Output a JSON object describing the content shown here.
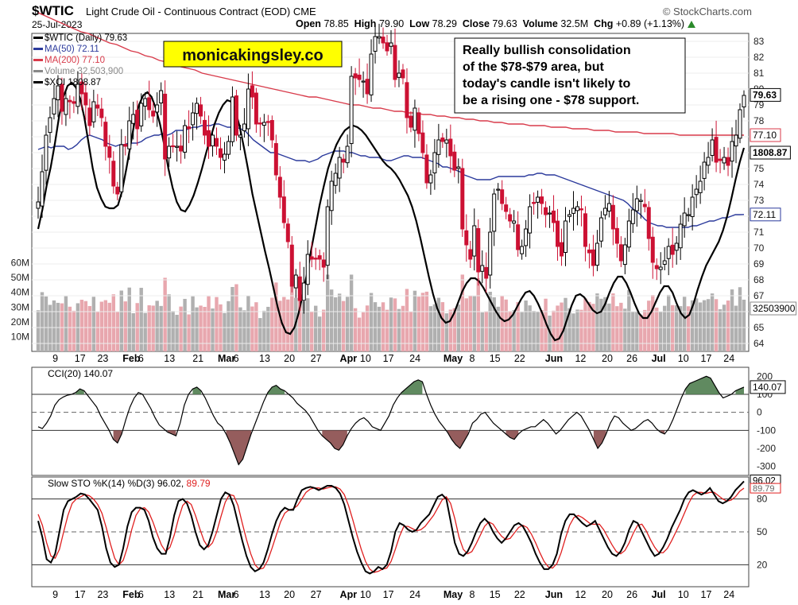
{
  "header": {
    "symbol": "$WTIC",
    "description": "Light Crude Oil - Continuous Contract (EOD) CME",
    "source": "© StockCharts.com",
    "date": "25-Jul-2023",
    "open_label": "Open",
    "open": "78.85",
    "high_label": "High",
    "high": "79.90",
    "low_label": "Low",
    "low": "78.29",
    "close_label": "Close",
    "close": "79.63",
    "volume_label": "Volume",
    "volume": "32.5M",
    "chg_label": "Chg",
    "chg": "+0.89 (+1.13%)"
  },
  "watermark": "monicakingsley.co",
  "annotation": "Really bullish consolidation of the $78-$79 area, but today's candle isn't likely to be a rising one - $78 support.",
  "colors": {
    "up": "#000000",
    "down": "#cc1133",
    "ma50": "#2b3a9c",
    "ma200": "#d83a4a",
    "xoi": "#000000",
    "vol_up": "#b0b0b0",
    "vol_down": "#e8a7ae",
    "cci_fill_pos": "#4f7d4f",
    "cci_fill_neg": "#8a4b4b",
    "stoch_k": "#000000",
    "stoch_d": "#e02020"
  },
  "chart_data": [
    {
      "type": "candlestick",
      "panel": "price",
      "title": "$WTIC (Daily) 79.63",
      "legend": [
        "$WTIC (Daily) 79.63",
        "MA(50) 72.11",
        "MA(200) 77.10",
        "Volume 32,503,900",
        "$XOI 1808.87"
      ],
      "ylim": [
        63.5,
        83.5
      ],
      "y_ticks": [
        64,
        65,
        66,
        67,
        68,
        69,
        70,
        71,
        72,
        73,
        74,
        75,
        76,
        77,
        78,
        79,
        80,
        81,
        82,
        83
      ],
      "volume_ticks": [
        "10M",
        "20M",
        "30M",
        "40M",
        "50M",
        "60M"
      ],
      "volume_ylim": [
        0,
        70
      ],
      "x_labels": [
        "9",
        "17",
        "23",
        "Feb",
        "6",
        "13",
        "21",
        "Mar",
        "6",
        "13",
        "20",
        "27",
        "Apr",
        "10",
        "17",
        "24",
        "May",
        "8",
        "15",
        "22",
        "Jun",
        "12",
        "20",
        "26",
        "Jul",
        "10",
        "17",
        "24"
      ],
      "value_labels": {
        "close": "79.63",
        "ma200": "77.10",
        "xoi": "1808.87",
        "ma50": "72.11",
        "volume": "32503900"
      },
      "closes": [
        72.9,
        74.8,
        77.1,
        78.2,
        79.4,
        80.2,
        78.6,
        79.4,
        79.2,
        79.1,
        80.3,
        79.7,
        79.0,
        77.7,
        79.2,
        78.8,
        78.2,
        76.4,
        75.7,
        73.9,
        73.4,
        76.5,
        76.4,
        78.0,
        78.4,
        77.5,
        79.1,
        79.4,
        78.7,
        78.3,
        79.0,
        79.9,
        75.6,
        76.4,
        76.4,
        76.4,
        76.1,
        77.7,
        77.5,
        78.5,
        79.1,
        78.3,
        77.1,
        76.4,
        77.1,
        76.4,
        75.7,
        75.9,
        76.7,
        79.5,
        77.1,
        77.1,
        77.8,
        80.0,
        79.5,
        77.8,
        77.8,
        77.9,
        77.9,
        76.8,
        74.6,
        73.2,
        71.6,
        70.4,
        67.6,
        68.3,
        66.7,
        67.8,
        69.6,
        69.3,
        69.3,
        69.3,
        68.8,
        72.6,
        74.2,
        74.7,
        75.7,
        75.4,
        76.4,
        80.8,
        80.7,
        80.6,
        80.5,
        79.7,
        82.2,
        83.3,
        83.3,
        82.9,
        82.4,
        82.9,
        80.6,
        81.0,
        80.7,
        78.2,
        77.6,
        78.8,
        77.2,
        76.0,
        74.1,
        74.6,
        76.0,
        76.8,
        76.7,
        76.8,
        75.8,
        74.9,
        75.1,
        71.2,
        70.2,
        69.3,
        71.4,
        68.5,
        68.9,
        68.1,
        71.0,
        73.4,
        73.7,
        72.8,
        72.3,
        71.7,
        71.7,
        69.9,
        70.1,
        71.2,
        72.6,
        72.8,
        73.2,
        72.8,
        72.1,
        72.2,
        71.6,
        70.1,
        69.5,
        71.7,
        72.1,
        72.5,
        72.6,
        72.4,
        70.1,
        69.7,
        68.9,
        70.3,
        71.9,
        72.5,
        72.8,
        71.2,
        70.3,
        69.2,
        70.2,
        71.7,
        72.4,
        73.1,
        73.0,
        72.6,
        70.6,
        69.1,
        68.7,
        68.8,
        69.2,
        70.1,
        69.6,
        70.3,
        71.5,
        72.2,
        72.1,
        73.2,
        73.7,
        74.2,
        75.4,
        75.7,
        76.8,
        75.4,
        75.5,
        75.7,
        75.2,
        76.7,
        77.1,
        78.7,
        79.6
      ],
      "ma50": [
        76.2,
        76.3,
        76.4,
        76.3,
        76.4,
        76.4,
        76.4,
        76.2,
        76.3,
        76.5,
        76.8,
        77.0,
        77.1,
        77.0,
        76.9,
        76.8,
        76.6,
        76.5,
        76.4,
        76.5,
        76.5,
        76.6,
        76.6,
        76.6,
        76.7,
        76.9,
        77.0,
        77.1,
        77.1,
        77.2,
        77.1,
        77.2,
        77.4,
        77.4,
        77.4,
        77.5,
        77.6,
        77.6,
        77.7,
        77.7,
        77.7,
        77.8,
        77.8,
        77.7,
        77.6,
        77.6,
        77.6,
        77.5,
        77.4,
        77.1,
        76.8,
        76.6,
        76.4,
        76.2,
        76.0,
        76.0,
        75.9,
        75.8,
        75.7,
        75.6,
        75.5,
        75.5,
        75.5,
        75.4,
        75.5,
        75.6,
        75.8,
        75.9,
        76.0,
        76.1,
        76.1,
        76.1,
        76.0,
        76.0,
        75.9,
        75.8,
        75.8,
        75.7,
        75.7,
        75.7,
        75.6,
        75.5,
        75.5,
        75.6,
        75.7,
        75.8,
        75.8,
        75.7,
        75.7,
        75.7,
        75.6,
        75.5,
        75.4,
        75.3,
        75.1,
        75.1,
        75.0,
        74.9,
        74.8,
        74.6,
        74.5,
        74.4,
        74.3,
        74.3,
        74.3,
        74.3,
        74.4,
        74.5,
        74.5,
        74.5,
        74.5,
        74.5,
        74.5,
        74.5,
        74.6,
        74.6,
        74.7,
        74.7,
        74.6,
        74.6,
        74.6,
        74.5,
        74.4,
        74.3,
        74.2,
        74.1,
        74.0,
        73.9,
        73.8,
        73.7,
        73.6,
        73.5,
        73.4,
        73.3,
        73.2,
        73.1,
        73.0,
        72.8,
        72.5,
        72.3,
        72.1,
        71.8,
        71.6,
        71.5,
        71.4,
        71.4,
        71.3,
        71.3,
        71.3,
        71.3,
        71.3,
        71.3,
        71.4,
        71.4,
        71.5,
        71.6,
        71.7,
        71.7,
        71.8,
        71.9,
        71.9,
        72.0,
        72.1,
        72.1,
        72.11
      ],
      "ma200": [
        84.8,
        84.6,
        84.4,
        84.2,
        84.0,
        83.8,
        83.6,
        83.5,
        83.3,
        83.1,
        82.9,
        82.8,
        82.6,
        82.4,
        82.3,
        82.1,
        82.0,
        81.8,
        81.7,
        81.6,
        81.4,
        81.3,
        81.2,
        81.0,
        80.9,
        80.8,
        80.7,
        80.6,
        80.5,
        80.4,
        80.3,
        80.2,
        80.1,
        80.0,
        79.9,
        79.8,
        79.7,
        79.6,
        79.5,
        79.5,
        79.4,
        79.3,
        79.2,
        79.1,
        79.0,
        79.0,
        78.9,
        78.8,
        78.8,
        78.7,
        78.6,
        78.6,
        78.5,
        78.5,
        78.4,
        78.4,
        78.3,
        78.3,
        78.2,
        78.2,
        78.1,
        78.1,
        78.0,
        78.0,
        77.9,
        77.9,
        77.8,
        77.8,
        77.8,
        77.7,
        77.7,
        77.7,
        77.6,
        77.6,
        77.6,
        77.5,
        77.5,
        77.5,
        77.4,
        77.4,
        77.4,
        77.3,
        77.3,
        77.3,
        77.3,
        77.2,
        77.2,
        77.2,
        77.2,
        77.2,
        77.1,
        77.1,
        77.1,
        77.1,
        77.1,
        77.1,
        77.1,
        77.1,
        77.1,
        77.1
      ],
      "xoi": [
        71.2,
        72.4,
        73.9,
        75.1,
        76.6,
        78.3,
        79.5,
        80.2,
        80.4,
        80.1,
        79.4,
        78.2,
        76.6,
        75.0,
        73.8,
        73.1,
        72.6,
        72.5,
        72.5,
        72.7,
        73.6,
        75.0,
        76.5,
        78.0,
        79.0,
        79.6,
        79.8,
        79.5,
        78.8,
        77.8,
        76.5,
        75.0,
        73.8,
        72.9,
        72.4,
        72.3,
        72.7,
        73.3,
        74.1,
        75.0,
        76.0,
        76.9,
        77.8,
        78.5,
        79.0,
        79.3,
        79.2,
        78.6,
        77.6,
        76.3,
        74.9,
        73.4,
        72.2,
        71.0,
        69.8,
        68.7,
        67.5,
        66.3,
        65.3,
        64.7,
        64.6,
        65.0,
        65.9,
        67.1,
        68.4,
        69.9,
        71.3,
        72.7,
        73.9,
        75.0,
        75.8,
        76.5,
        77.0,
        77.4,
        77.6,
        77.7,
        77.6,
        77.4,
        77.1,
        76.7,
        76.3,
        75.9,
        75.5,
        75.2,
        75.0,
        74.7,
        74.3,
        73.8,
        73.3,
        72.6,
        71.7,
        70.6,
        69.4,
        68.2,
        67.1,
        66.2,
        65.6,
        65.3,
        65.4,
        65.9,
        66.6,
        67.3,
        67.8,
        68.1,
        68.1,
        67.9,
        67.5,
        67.0,
        66.5,
        66.0,
        65.6,
        65.4,
        65.5,
        65.8,
        66.3,
        66.8,
        67.2,
        67.3,
        67.0,
        66.5,
        65.9,
        65.2,
        64.6,
        64.2,
        64.3,
        64.8,
        65.6,
        66.4,
        67.0,
        67.1,
        66.9,
        66.5,
        66.1,
        65.9,
        66.0,
        66.5,
        67.2,
        67.8,
        68.2,
        68.2,
        67.8,
        67.2,
        66.5,
        65.9,
        65.6,
        65.6,
        66.0,
        66.6,
        67.2,
        67.6,
        67.6,
        67.2,
        66.5,
        65.9,
        65.6,
        65.8,
        66.5,
        67.4,
        68.2,
        68.9,
        69.4,
        69.9,
        70.4,
        71.1,
        72.0,
        73.1,
        74.3,
        75.4,
        76.3
      ]
    },
    {
      "type": "line",
      "panel": "cci",
      "title": "CCI(20) 140.07",
      "ylim": [
        -350,
        250
      ],
      "y_ticks": [
        200,
        100,
        0,
        -100,
        -200,
        -300
      ],
      "value_label": "140.07",
      "values": [
        -80,
        -90,
        -60,
        -20,
        40,
        70,
        85,
        95,
        100,
        110,
        130,
        120,
        90,
        60,
        30,
        -20,
        -60,
        -100,
        -150,
        -170,
        -120,
        -40,
        30,
        80,
        110,
        100,
        60,
        20,
        -30,
        -70,
        -90,
        -110,
        -120,
        -130,
        -60,
        40,
        100,
        130,
        140,
        120,
        80,
        30,
        -20,
        -60,
        -80,
        -120,
        -170,
        -230,
        -290,
        -260,
        -190,
        -120,
        -60,
        0,
        60,
        110,
        140,
        150,
        130,
        120,
        100,
        80,
        50,
        30,
        10,
        -20,
        -60,
        -100,
        -130,
        -150,
        -170,
        -200,
        -210,
        -180,
        -130,
        -90,
        -60,
        -40,
        -30,
        -50,
        -80,
        -90,
        -100,
        -60,
        -20,
        40,
        80,
        110,
        130,
        150,
        170,
        180,
        170,
        100,
        40,
        -10,
        -50,
        -80,
        -110,
        -150,
        -180,
        -200,
        -160,
        -120,
        -60,
        -40,
        -10,
        0,
        -30,
        -60,
        -80,
        -100,
        -120,
        -140,
        -150,
        -120,
        -100,
        -90,
        -80,
        -80,
        -60,
        -40,
        -60,
        -90,
        -120,
        -100,
        -70,
        -40,
        -20,
        0,
        -20,
        -60,
        -100,
        -150,
        -200,
        -170,
        -120,
        -60,
        -20,
        -30,
        -60,
        -80,
        -100,
        -90,
        -70,
        -50,
        -40,
        -60,
        -90,
        -110,
        -120,
        -90,
        -40,
        20,
        80,
        130,
        160,
        170,
        180,
        190,
        200,
        190,
        150,
        110,
        80,
        90,
        100,
        120,
        130,
        140
      ]
    },
    {
      "type": "line",
      "panel": "stochastic",
      "title": "Slow STO %K(14) %D(3) 96.02, 89.79",
      "title_k": "Slow STO %K(14) %D(3) 96.02,",
      "title_d": "89.79",
      "ylim": [
        0,
        100
      ],
      "y_ticks": [
        80,
        50,
        20
      ],
      "k_label": "96.02",
      "d_label": "89.79",
      "k": [
        60,
        45,
        25,
        22,
        30,
        50,
        70,
        78,
        80,
        82,
        85,
        84,
        80,
        75,
        70,
        55,
        35,
        22,
        18,
        20,
        35,
        55,
        68,
        72,
        72,
        70,
        60,
        45,
        35,
        30,
        30,
        45,
        65,
        78,
        80,
        76,
        65,
        50,
        38,
        34,
        38,
        50,
        65,
        80,
        86,
        84,
        74,
        58,
        42,
        28,
        18,
        14,
        16,
        22,
        34,
        48,
        60,
        68,
        72,
        70,
        70,
        80,
        88,
        90,
        91,
        90,
        88,
        90,
        92,
        92,
        90,
        85,
        75,
        60,
        45,
        32,
        22,
        14,
        12,
        14,
        18,
        16,
        20,
        32,
        50,
        58,
        56,
        52,
        50,
        52,
        58,
        62,
        66,
        74,
        82,
        84,
        80,
        60,
        40,
        30,
        28,
        32,
        40,
        50,
        58,
        62,
        58,
        50,
        44,
        40,
        44,
        50,
        56,
        58,
        55,
        48,
        40,
        30,
        22,
        16,
        16,
        20,
        30,
        48,
        60,
        66,
        66,
        62,
        58,
        55,
        57,
        60,
        52,
        44,
        36,
        30,
        28,
        32,
        40,
        52,
        60,
        58,
        50,
        42,
        34,
        28,
        30,
        36,
        44,
        54,
        62,
        70,
        80,
        86,
        88,
        86,
        84,
        86,
        90,
        84,
        78,
        76,
        78,
        82,
        88,
        92,
        96.02
      ],
      "d": [
        66,
        56,
        40,
        28,
        26,
        34,
        50,
        65,
        76,
        80,
        82,
        84,
        83,
        80,
        75,
        67,
        54,
        39,
        26,
        20,
        24,
        36,
        52,
        65,
        71,
        72,
        68,
        59,
        48,
        38,
        32,
        36,
        47,
        62,
        74,
        78,
        75,
        65,
        53,
        42,
        36,
        40,
        50,
        64,
        77,
        84,
        83,
        74,
        58,
        43,
        30,
        20,
        16,
        17,
        24,
        35,
        47,
        59,
        67,
        70,
        71,
        74,
        80,
        86,
        89,
        90,
        90,
        89,
        90,
        91,
        91,
        89,
        84,
        74,
        61,
        47,
        34,
        23,
        16,
        13,
        14,
        16,
        17,
        23,
        34,
        46,
        55,
        55,
        53,
        51,
        52,
        55,
        60,
        65,
        72,
        79,
        82,
        76,
        62,
        45,
        34,
        30,
        32,
        39,
        47,
        55,
        59,
        57,
        51,
        46,
        43,
        44,
        49,
        54,
        56,
        54,
        48,
        40,
        31,
        23,
        18,
        17,
        21,
        31,
        44,
        56,
        63,
        65,
        63,
        60,
        57,
        57,
        57,
        52,
        45,
        38,
        32,
        30,
        33,
        40,
        49,
        56,
        57,
        51,
        43,
        36,
        31,
        31,
        35,
        42,
        50,
        58,
        67,
        76,
        83,
        86,
        86,
        85,
        86,
        86,
        83,
        80,
        78,
        79,
        82,
        87,
        89.79
      ]
    }
  ]
}
